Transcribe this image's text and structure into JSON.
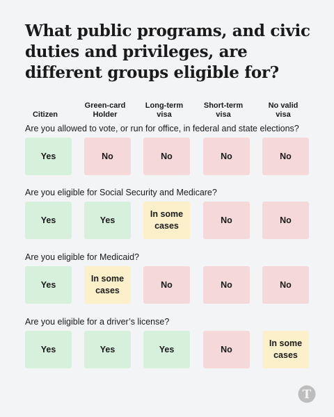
{
  "title": "What public programs, and civic duties and privileges, are different groups eligible for?",
  "columns": [
    {
      "lines": [
        "Citizen"
      ]
    },
    {
      "lines": [
        "Green-card",
        "Holder"
      ]
    },
    {
      "lines": [
        "Long-term",
        "visa"
      ]
    },
    {
      "lines": [
        "Short-term",
        "visa"
      ]
    },
    {
      "lines": [
        "No valid",
        "visa"
      ]
    }
  ],
  "rows": [
    {
      "question": "Are you allowed to vote, or run for office, in federal and state elections?",
      "answers": [
        {
          "text": "Yes",
          "status": "yes"
        },
        {
          "text": "No",
          "status": "no"
        },
        {
          "text": "No",
          "status": "no"
        },
        {
          "text": "No",
          "status": "no"
        },
        {
          "text": "No",
          "status": "no"
        }
      ]
    },
    {
      "question": "Are you eligible for Social Security and Medicare?",
      "answers": [
        {
          "text": "Yes",
          "status": "yes"
        },
        {
          "text": "Yes",
          "status": "yes"
        },
        {
          "text": "In some cases",
          "status": "some"
        },
        {
          "text": "No",
          "status": "no"
        },
        {
          "text": "No",
          "status": "no"
        }
      ]
    },
    {
      "question": "Are you eligible for Medicaid?",
      "answers": [
        {
          "text": "Yes",
          "status": "yes"
        },
        {
          "text": "In some cases",
          "status": "some"
        },
        {
          "text": "No",
          "status": "no"
        },
        {
          "text": "No",
          "status": "no"
        },
        {
          "text": "No",
          "status": "no"
        }
      ]
    },
    {
      "question": "Are you eligible for a driver’s license?",
      "answers": [
        {
          "text": "Yes",
          "status": "yes"
        },
        {
          "text": "Yes",
          "status": "yes"
        },
        {
          "text": "Yes",
          "status": "yes"
        },
        {
          "text": "No",
          "status": "no"
        },
        {
          "text": "In some cases",
          "status": "some"
        }
      ]
    }
  ],
  "colors": {
    "yes": "#d6f0dc",
    "no": "#f5d9da",
    "some": "#fbf0c9",
    "background": "#f3f4f6"
  },
  "logo_icon": "nyt-t-logo-icon"
}
